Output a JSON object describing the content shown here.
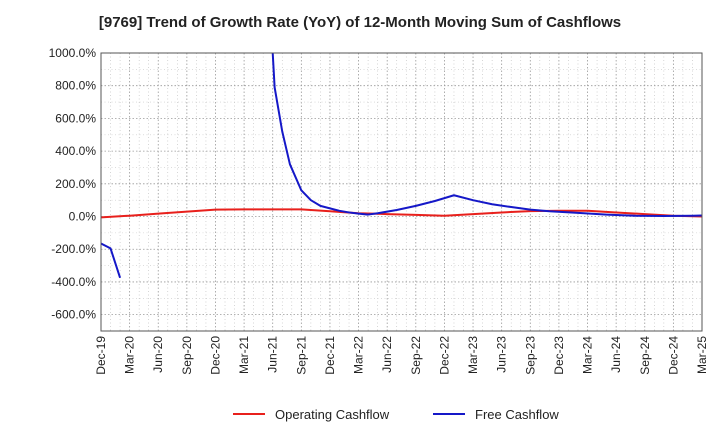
{
  "chart_data": {
    "type": "line",
    "title": "[9769]  Trend of Growth Rate (YoY) of 12-Month Moving Sum of Cashflows",
    "xlabel": "",
    "ylabel": "",
    "ylim": [
      -700,
      1000
    ],
    "yticks": [
      1000,
      800,
      600,
      400,
      200,
      0,
      -200,
      -400,
      -600
    ],
    "ytick_labels": [
      "1000.0%",
      "800.0%",
      "600.0%",
      "400.0%",
      "200.0%",
      "0.0%",
      "-200.0%",
      "-400.0%",
      "-600.0%"
    ],
    "xtick_labels": [
      "Dec-19",
      "Mar-20",
      "Jun-20",
      "Sep-20",
      "Dec-20",
      "Mar-21",
      "Jun-21",
      "Sep-21",
      "Dec-21",
      "Mar-22",
      "Jun-22",
      "Sep-22",
      "Dec-22",
      "Mar-23",
      "Jun-23",
      "Sep-23",
      "Dec-23",
      "Mar-24",
      "Jun-24",
      "Sep-24",
      "Dec-24",
      "Mar-25"
    ],
    "grid": true,
    "legend_position": "bottom",
    "series": [
      {
        "name": "Operating Cashflow",
        "color": "#e8201c",
        "points": [
          [
            0,
            -5
          ],
          [
            3,
            5
          ],
          [
            6,
            18
          ],
          [
            9,
            30
          ],
          [
            12,
            42
          ],
          [
            15,
            44
          ],
          [
            18,
            44
          ],
          [
            21,
            44
          ],
          [
            24,
            32
          ],
          [
            27,
            20
          ],
          [
            30,
            15
          ],
          [
            33,
            10
          ],
          [
            36,
            5
          ],
          [
            39,
            15
          ],
          [
            42,
            25
          ],
          [
            45,
            33
          ],
          [
            48,
            35
          ],
          [
            51,
            35
          ],
          [
            54,
            25
          ],
          [
            57,
            15
          ],
          [
            60,
            5
          ],
          [
            63,
            0
          ],
          [
            66,
            -5
          ],
          [
            69,
            -15
          ]
        ]
      },
      {
        "name": "Free Cashflow",
        "color": "#1518c8",
        "segments": [
          [
            [
              0,
              -165
            ],
            [
              1,
              -195
            ],
            [
              2,
              -375
            ]
          ],
          [
            [
              18,
              1000
            ],
            [
              18.2,
              790
            ],
            [
              19,
              520
            ],
            [
              19.8,
              320
            ],
            [
              21,
              160
            ],
            [
              22,
              100
            ],
            [
              23,
              65
            ],
            [
              24,
              50
            ],
            [
              25,
              35
            ],
            [
              26,
              25
            ],
            [
              27,
              18
            ],
            [
              28,
              12
            ],
            [
              29,
              20
            ],
            [
              31,
              40
            ],
            [
              33,
              65
            ],
            [
              35,
              95
            ],
            [
              37,
              130
            ],
            [
              39,
              100
            ],
            [
              41,
              75
            ],
            [
              43,
              58
            ],
            [
              45,
              42
            ],
            [
              47,
              32
            ],
            [
              50,
              22
            ],
            [
              53,
              12
            ],
            [
              56,
              5
            ],
            [
              59,
              3
            ],
            [
              62,
              5
            ],
            [
              65,
              8
            ],
            [
              69,
              10
            ]
          ]
        ]
      }
    ]
  }
}
